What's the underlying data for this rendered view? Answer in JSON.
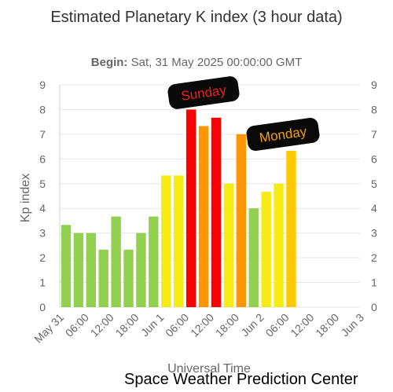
{
  "title": "Estimated Planetary K index (3 hour data)",
  "subtitle": {
    "label": "Begin:",
    "value": "Sat, 31 May 2025 00:00:00 GMT"
  },
  "footer": "Space Weather Prediction Center",
  "chart_data": {
    "type": "bar",
    "xlabel": "Universal Time",
    "ylabel": "Kp index",
    "ylim": [
      0,
      9
    ],
    "grid": true,
    "legend": "none",
    "y_ticks": [
      "0",
      "1",
      "2",
      "3",
      "4",
      "5",
      "6",
      "7",
      "8",
      "9"
    ],
    "x_ticks": [
      "May 31",
      "06:00",
      "12:00",
      "18:00",
      "Jun 1",
      "06:00",
      "12:00",
      "18:00",
      "Jun 2",
      "06:00",
      "12:00",
      "18:00",
      "Jun 3"
    ],
    "x_range_hours": [
      0,
      72
    ],
    "bar_interval_hours": 3,
    "values": [
      3.33,
      3.0,
      3.0,
      2.33,
      3.67,
      2.33,
      3.0,
      3.67,
      5.33,
      5.33,
      8.0,
      7.33,
      7.67,
      5.0,
      7.0,
      4.0,
      4.67,
      5.0,
      6.33
    ],
    "colors": {
      "quiet": "#92d050",
      "kp5": "#f6eb14",
      "kp6": "#ffc800",
      "kp7": "#ff9600",
      "kp8": "#ff0000",
      "kp9": "#c80000",
      "grid": "#e6e6e6"
    },
    "annotations": [
      {
        "text": "Sunday",
        "text_color": "#e8231b",
        "background": "#0a0a0a"
      },
      {
        "text": "Monday",
        "text_color": "#f2a100",
        "background": "#0a0a0a"
      }
    ]
  }
}
